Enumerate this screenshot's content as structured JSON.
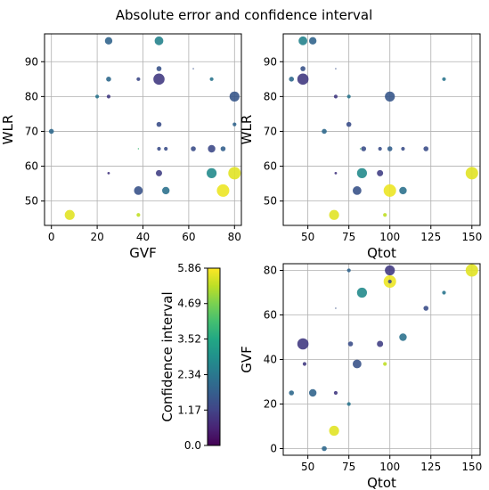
{
  "figure": {
    "title": "Absolute error and confidence interval"
  },
  "colorbar": {
    "label": "Confidence interval",
    "min": 0.0,
    "max": 5.86,
    "ticks": [
      "0.0",
      "1.17",
      "2.34",
      "3.52",
      "4.69",
      "5.86"
    ]
  },
  "chart_data": [
    {
      "type": "scatter",
      "id": "gvf-wlr",
      "xlabel": "GVF",
      "ylabel": "WLR",
      "xlim": [
        -3,
        83
      ],
      "ylim": [
        43,
        98
      ],
      "xticks": [
        0,
        20,
        40,
        60,
        80
      ],
      "yticks": [
        50,
        60,
        70,
        80,
        90
      ],
      "grid": true,
      "points": [
        {
          "x": 25,
          "y": 96,
          "size": 6,
          "ci": 1.9
        },
        {
          "x": 47,
          "y": 96,
          "size": 7,
          "ci": 2.6
        },
        {
          "x": 25,
          "y": 85,
          "size": 4,
          "ci": 2.0
        },
        {
          "x": 38,
          "y": 85,
          "size": 3,
          "ci": 1.3
        },
        {
          "x": 47,
          "y": 88,
          "size": 4,
          "ci": 1.5
        },
        {
          "x": 47,
          "y": 85,
          "size": 9,
          "ci": 1.0
        },
        {
          "x": 62,
          "y": 88,
          "size": 1,
          "ci": 1.5
        },
        {
          "x": 70,
          "y": 85,
          "size": 3,
          "ci": 2.3
        },
        {
          "x": 20,
          "y": 80,
          "size": 3,
          "ci": 2.3
        },
        {
          "x": 25,
          "y": 80,
          "size": 3,
          "ci": 1.0
        },
        {
          "x": 80,
          "y": 80,
          "size": 8,
          "ci": 1.6
        },
        {
          "x": 0,
          "y": 70,
          "size": 4,
          "ci": 2.0
        },
        {
          "x": 47,
          "y": 72,
          "size": 4,
          "ci": 1.4
        },
        {
          "x": 80,
          "y": 72,
          "size": 3,
          "ci": 1.9
        },
        {
          "x": 38,
          "y": 65,
          "size": 1,
          "ci": 4.0
        },
        {
          "x": 47,
          "y": 65,
          "size": 3,
          "ci": 1.4
        },
        {
          "x": 50,
          "y": 65,
          "size": 3,
          "ci": 1.4
        },
        {
          "x": 62,
          "y": 65,
          "size": 4,
          "ci": 1.4
        },
        {
          "x": 70,
          "y": 65,
          "size": 6,
          "ci": 1.3
        },
        {
          "x": 75,
          "y": 65,
          "size": 4,
          "ci": 1.8
        },
        {
          "x": 25,
          "y": 58,
          "size": 2,
          "ci": 0.9
        },
        {
          "x": 47,
          "y": 58,
          "size": 5,
          "ci": 1.1
        },
        {
          "x": 70,
          "y": 58,
          "size": 8,
          "ci": 2.8
        },
        {
          "x": 80,
          "y": 58,
          "size": 10,
          "ci": 5.6
        },
        {
          "x": 38,
          "y": 53,
          "size": 7,
          "ci": 1.5
        },
        {
          "x": 50,
          "y": 53,
          "size": 6,
          "ci": 2.2
        },
        {
          "x": 75,
          "y": 53,
          "size": 10,
          "ci": 5.7
        },
        {
          "x": 8,
          "y": 46,
          "size": 8,
          "ci": 5.6
        },
        {
          "x": 38,
          "y": 46,
          "size": 3,
          "ci": 5.3
        }
      ]
    },
    {
      "type": "scatter",
      "id": "qtot-wlr",
      "xlabel": "Qtot",
      "ylabel": "WLR",
      "xlim": [
        35,
        155
      ],
      "ylim": [
        43,
        98
      ],
      "xticks": [
        50,
        75,
        100,
        125,
        150
      ],
      "yticks": [
        50,
        60,
        70,
        80,
        90
      ],
      "grid": true,
      "points": [
        {
          "x": 47,
          "y": 96,
          "size": 7,
          "ci": 2.6
        },
        {
          "x": 53,
          "y": 96,
          "size": 6,
          "ci": 1.9
        },
        {
          "x": 40,
          "y": 85,
          "size": 4,
          "ci": 2.0
        },
        {
          "x": 47,
          "y": 88,
          "size": 4,
          "ci": 1.5
        },
        {
          "x": 47,
          "y": 85,
          "size": 9,
          "ci": 1.0
        },
        {
          "x": 67,
          "y": 88,
          "size": 1,
          "ci": 1.5
        },
        {
          "x": 133,
          "y": 85,
          "size": 3,
          "ci": 2.3
        },
        {
          "x": 67,
          "y": 80,
          "size": 3,
          "ci": 1.0
        },
        {
          "x": 75,
          "y": 80,
          "size": 3,
          "ci": 2.3
        },
        {
          "x": 100,
          "y": 80,
          "size": 8,
          "ci": 1.6
        },
        {
          "x": 60,
          "y": 70,
          "size": 4,
          "ci": 2.0
        },
        {
          "x": 75,
          "y": 72,
          "size": 4,
          "ci": 1.4
        },
        {
          "x": 82,
          "y": 65,
          "size": 1,
          "ci": 4.0
        },
        {
          "x": 84,
          "y": 65,
          "size": 4,
          "ci": 1.4
        },
        {
          "x": 94,
          "y": 65,
          "size": 3,
          "ci": 1.4
        },
        {
          "x": 100,
          "y": 65,
          "size": 4,
          "ci": 1.8
        },
        {
          "x": 108,
          "y": 65,
          "size": 3,
          "ci": 1.4
        },
        {
          "x": 122,
          "y": 65,
          "size": 4,
          "ci": 1.4
        },
        {
          "x": 67,
          "y": 58,
          "size": 2,
          "ci": 0.9
        },
        {
          "x": 83,
          "y": 58,
          "size": 8,
          "ci": 2.8
        },
        {
          "x": 94,
          "y": 58,
          "size": 5,
          "ci": 1.1
        },
        {
          "x": 150,
          "y": 58,
          "size": 10,
          "ci": 5.6
        },
        {
          "x": 80,
          "y": 53,
          "size": 7,
          "ci": 1.5
        },
        {
          "x": 100,
          "y": 53,
          "size": 10,
          "ci": 5.7
        },
        {
          "x": 108,
          "y": 53,
          "size": 6,
          "ci": 2.2
        },
        {
          "x": 66,
          "y": 46,
          "size": 8,
          "ci": 5.6
        },
        {
          "x": 97,
          "y": 46,
          "size": 3,
          "ci": 5.3
        }
      ]
    },
    {
      "type": "scatter",
      "id": "qtot-gvf",
      "xlabel": "Qtot",
      "ylabel": "GVF",
      "xlim": [
        35,
        155
      ],
      "ylim": [
        -3,
        83
      ],
      "xticks": [
        50,
        75,
        100,
        125,
        150
      ],
      "yticks": [
        0,
        20,
        40,
        60,
        80
      ],
      "grid": true,
      "points": [
        {
          "x": 75,
          "y": 80,
          "size": 3,
          "ci": 1.9
        },
        {
          "x": 100,
          "y": 80,
          "size": 8,
          "ci": 1.0
        },
        {
          "x": 150,
          "y": 80,
          "size": 10,
          "ci": 5.6
        },
        {
          "x": 100,
          "y": 75,
          "size": 10,
          "ci": 5.7
        },
        {
          "x": 100,
          "y": 75,
          "size": 3,
          "ci": 1.3
        },
        {
          "x": 83,
          "y": 70,
          "size": 8,
          "ci": 2.8
        },
        {
          "x": 133,
          "y": 70,
          "size": 3,
          "ci": 2.3
        },
        {
          "x": 67,
          "y": 63,
          "size": 1,
          "ci": 1.5
        },
        {
          "x": 122,
          "y": 63,
          "size": 4,
          "ci": 1.4
        },
        {
          "x": 108,
          "y": 50,
          "size": 6,
          "ci": 2.2
        },
        {
          "x": 47,
          "y": 47,
          "size": 9,
          "ci": 1.0
        },
        {
          "x": 76,
          "y": 47,
          "size": 4,
          "ci": 1.4
        },
        {
          "x": 94,
          "y": 47,
          "size": 5,
          "ci": 1.1
        },
        {
          "x": 48,
          "y": 38,
          "size": 3,
          "ci": 1.0
        },
        {
          "x": 80,
          "y": 38,
          "size": 7,
          "ci": 1.5
        },
        {
          "x": 97,
          "y": 38,
          "size": 3,
          "ci": 5.3
        },
        {
          "x": 40,
          "y": 25,
          "size": 4,
          "ci": 2.0
        },
        {
          "x": 53,
          "y": 25,
          "size": 6,
          "ci": 1.9
        },
        {
          "x": 67,
          "y": 25,
          "size": 3,
          "ci": 1.0
        },
        {
          "x": 75,
          "y": 20,
          "size": 3,
          "ci": 2.3
        },
        {
          "x": 66,
          "y": 8,
          "size": 8,
          "ci": 5.6
        },
        {
          "x": 60,
          "y": 0,
          "size": 4,
          "ci": 2.0
        }
      ]
    }
  ]
}
